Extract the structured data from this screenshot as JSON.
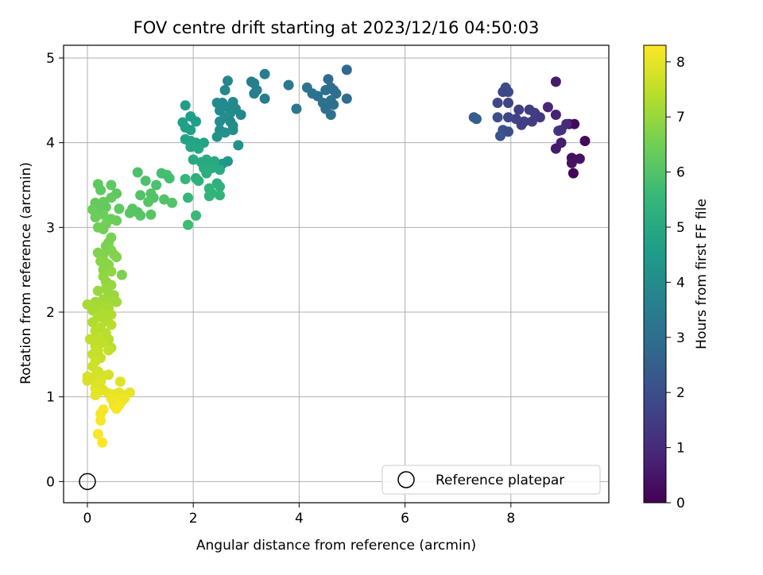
{
  "chart_data": {
    "type": "scatter",
    "title": "FOV centre drift starting at 2023/12/16 04:50:03",
    "xlabel": "Angular distance from reference (arcmin)",
    "ylabel": "Rotation from reference (arcmin)",
    "xlim": [
      -0.45,
      9.85
    ],
    "ylim": [
      -0.25,
      5.15
    ],
    "x_ticks": [
      0,
      2,
      4,
      6,
      8
    ],
    "y_ticks": [
      0,
      1,
      2,
      3,
      4,
      5
    ],
    "grid": true,
    "legend": {
      "location": "lower right",
      "entries": [
        "Reference platepar"
      ]
    },
    "reference_point": {
      "x": 0,
      "y": 0,
      "label": "Reference platepar"
    },
    "colorbar": {
      "label": "Hours from first FF file",
      "colormap": "viridis",
      "range": [
        0,
        8.3
      ],
      "ticks": [
        0,
        1,
        2,
        3,
        4,
        5,
        6,
        7,
        8
      ]
    },
    "colormap_stops": [
      "#440154",
      "#482878",
      "#3e4989",
      "#31688e",
      "#26828e",
      "#1f9e89",
      "#35b779",
      "#6ece58",
      "#b5de2b",
      "#fde725"
    ],
    "points": [
      {
        "x": 8.85,
        "y": 4.72,
        "h": 0.6
      },
      {
        "x": 9.1,
        "y": 4.22,
        "h": 0.3
      },
      {
        "x": 9.2,
        "y": 4.22,
        "h": 0.2
      },
      {
        "x": 9.4,
        "y": 4.02,
        "h": 0.2
      },
      {
        "x": 8.95,
        "y": 4.0,
        "h": 0.7
      },
      {
        "x": 8.85,
        "y": 3.93,
        "h": 0.6
      },
      {
        "x": 9.15,
        "y": 3.82,
        "h": 0.3
      },
      {
        "x": 9.3,
        "y": 3.81,
        "h": 0.4
      },
      {
        "x": 9.15,
        "y": 3.76,
        "h": 0.4
      },
      {
        "x": 9.18,
        "y": 3.64,
        "h": 0.1
      },
      {
        "x": 8.9,
        "y": 4.14,
        "h": 1.3
      },
      {
        "x": 8.95,
        "y": 4.15,
        "h": 1.2
      },
      {
        "x": 9.05,
        "y": 4.22,
        "h": 1.0
      },
      {
        "x": 8.7,
        "y": 4.42,
        "h": 0.9
      },
      {
        "x": 8.85,
        "y": 4.33,
        "h": 0.8
      },
      {
        "x": 7.9,
        "y": 4.65,
        "h": 2.0
      },
      {
        "x": 7.95,
        "y": 4.6,
        "h": 1.9
      },
      {
        "x": 7.85,
        "y": 4.6,
        "h": 1.8
      },
      {
        "x": 7.75,
        "y": 4.47,
        "h": 1.8
      },
      {
        "x": 7.95,
        "y": 4.47,
        "h": 1.7
      },
      {
        "x": 8.15,
        "y": 4.39,
        "h": 1.6
      },
      {
        "x": 8.35,
        "y": 4.39,
        "h": 1.5
      },
      {
        "x": 8.45,
        "y": 4.35,
        "h": 1.5
      },
      {
        "x": 8.55,
        "y": 4.3,
        "h": 1.4
      },
      {
        "x": 7.75,
        "y": 4.3,
        "h": 2.0
      },
      {
        "x": 7.95,
        "y": 4.3,
        "h": 1.8
      },
      {
        "x": 8.1,
        "y": 4.28,
        "h": 1.7
      },
      {
        "x": 8.25,
        "y": 4.25,
        "h": 1.7
      },
      {
        "x": 8.2,
        "y": 4.21,
        "h": 1.6
      },
      {
        "x": 8.4,
        "y": 4.25,
        "h": 1.5
      },
      {
        "x": 7.85,
        "y": 4.15,
        "h": 2.1
      },
      {
        "x": 7.95,
        "y": 4.13,
        "h": 2.0
      },
      {
        "x": 7.8,
        "y": 4.08,
        "h": 2.2
      },
      {
        "x": 7.3,
        "y": 4.3,
        "h": 2.4
      },
      {
        "x": 7.35,
        "y": 4.28,
        "h": 2.5
      },
      {
        "x": 4.9,
        "y": 4.86,
        "h": 2.8
      },
      {
        "x": 4.55,
        "y": 4.75,
        "h": 2.9
      },
      {
        "x": 4.6,
        "y": 4.65,
        "h": 2.9
      },
      {
        "x": 4.65,
        "y": 4.62,
        "h": 3.0
      },
      {
        "x": 4.5,
        "y": 4.62,
        "h": 3.0
      },
      {
        "x": 4.7,
        "y": 4.58,
        "h": 3.0
      },
      {
        "x": 4.6,
        "y": 4.5,
        "h": 3.1
      },
      {
        "x": 4.35,
        "y": 4.55,
        "h": 3.1
      },
      {
        "x": 4.25,
        "y": 4.58,
        "h": 3.2
      },
      {
        "x": 4.15,
        "y": 4.65,
        "h": 3.2
      },
      {
        "x": 4.45,
        "y": 4.47,
        "h": 3.1
      },
      {
        "x": 4.65,
        "y": 4.45,
        "h": 3.0
      },
      {
        "x": 4.9,
        "y": 4.52,
        "h": 2.9
      },
      {
        "x": 4.5,
        "y": 4.4,
        "h": 3.0
      },
      {
        "x": 4.6,
        "y": 4.33,
        "h": 3.1
      },
      {
        "x": 3.95,
        "y": 4.4,
        "h": 3.3
      },
      {
        "x": 3.8,
        "y": 4.68,
        "h": 3.4
      },
      {
        "x": 3.35,
        "y": 4.81,
        "h": 3.5
      },
      {
        "x": 3.1,
        "y": 4.72,
        "h": 3.6
      },
      {
        "x": 3.15,
        "y": 4.7,
        "h": 3.6
      },
      {
        "x": 3.2,
        "y": 4.62,
        "h": 3.6
      },
      {
        "x": 3.15,
        "y": 4.58,
        "h": 3.6
      },
      {
        "x": 3.35,
        "y": 4.52,
        "h": 3.5
      },
      {
        "x": 2.65,
        "y": 4.73,
        "h": 3.8
      },
      {
        "x": 2.6,
        "y": 4.62,
        "h": 3.9
      },
      {
        "x": 2.55,
        "y": 4.47,
        "h": 3.9
      },
      {
        "x": 2.45,
        "y": 4.47,
        "h": 4.0
      },
      {
        "x": 2.75,
        "y": 4.48,
        "h": 3.9
      },
      {
        "x": 2.65,
        "y": 4.42,
        "h": 4.0
      },
      {
        "x": 2.8,
        "y": 4.4,
        "h": 3.9
      },
      {
        "x": 2.5,
        "y": 4.38,
        "h": 4.0
      },
      {
        "x": 2.7,
        "y": 4.35,
        "h": 4.0
      },
      {
        "x": 2.9,
        "y": 4.33,
        "h": 3.9
      },
      {
        "x": 2.6,
        "y": 4.3,
        "h": 4.1
      },
      {
        "x": 2.5,
        "y": 4.25,
        "h": 4.1
      },
      {
        "x": 2.7,
        "y": 4.25,
        "h": 4.0
      },
      {
        "x": 2.75,
        "y": 4.2,
        "h": 4.0
      },
      {
        "x": 2.5,
        "y": 4.15,
        "h": 4.1
      },
      {
        "x": 2.6,
        "y": 4.12,
        "h": 4.2
      },
      {
        "x": 2.75,
        "y": 4.15,
        "h": 4.1
      },
      {
        "x": 2.45,
        "y": 4.07,
        "h": 4.2
      },
      {
        "x": 2.85,
        "y": 3.97,
        "h": 4.2
      },
      {
        "x": 2.55,
        "y": 3.75,
        "h": 4.4
      },
      {
        "x": 2.65,
        "y": 3.78,
        "h": 4.4
      },
      {
        "x": 1.85,
        "y": 4.44,
        "h": 4.6
      },
      {
        "x": 1.95,
        "y": 4.31,
        "h": 4.6
      },
      {
        "x": 2.05,
        "y": 4.25,
        "h": 4.6
      },
      {
        "x": 1.8,
        "y": 4.24,
        "h": 4.7
      },
      {
        "x": 1.85,
        "y": 4.18,
        "h": 4.7
      },
      {
        "x": 1.95,
        "y": 4.15,
        "h": 4.7
      },
      {
        "x": 1.85,
        "y": 4.04,
        "h": 4.8
      },
      {
        "x": 1.95,
        "y": 4.02,
        "h": 4.8
      },
      {
        "x": 2.05,
        "y": 4.0,
        "h": 4.8
      },
      {
        "x": 2.2,
        "y": 4.0,
        "h": 4.8
      },
      {
        "x": 1.95,
        "y": 3.95,
        "h": 4.9
      },
      {
        "x": 2.1,
        "y": 3.93,
        "h": 4.9
      },
      {
        "x": 2.0,
        "y": 3.8,
        "h": 5.0
      },
      {
        "x": 2.15,
        "y": 3.77,
        "h": 5.0
      },
      {
        "x": 2.25,
        "y": 3.8,
        "h": 5.0
      },
      {
        "x": 2.4,
        "y": 3.78,
        "h": 5.0
      },
      {
        "x": 2.2,
        "y": 3.7,
        "h": 5.1
      },
      {
        "x": 2.35,
        "y": 3.7,
        "h": 5.1
      },
      {
        "x": 2.5,
        "y": 3.68,
        "h": 5.1
      },
      {
        "x": 2.25,
        "y": 3.64,
        "h": 5.2
      },
      {
        "x": 2.05,
        "y": 3.58,
        "h": 5.2
      },
      {
        "x": 2.1,
        "y": 3.55,
        "h": 5.3
      },
      {
        "x": 2.45,
        "y": 3.52,
        "h": 5.3
      },
      {
        "x": 2.5,
        "y": 3.48,
        "h": 5.3
      },
      {
        "x": 2.3,
        "y": 3.46,
        "h": 5.4
      },
      {
        "x": 2.35,
        "y": 3.4,
        "h": 5.4
      },
      {
        "x": 2.5,
        "y": 3.38,
        "h": 5.4
      },
      {
        "x": 2.3,
        "y": 3.37,
        "h": 5.4
      },
      {
        "x": 1.85,
        "y": 3.57,
        "h": 5.5
      },
      {
        "x": 1.9,
        "y": 3.35,
        "h": 5.5
      },
      {
        "x": 2.05,
        "y": 3.14,
        "h": 5.6
      },
      {
        "x": 1.9,
        "y": 3.03,
        "h": 5.7
      },
      {
        "x": 1.4,
        "y": 3.64,
        "h": 5.8
      },
      {
        "x": 1.5,
        "y": 3.62,
        "h": 5.8
      },
      {
        "x": 1.55,
        "y": 3.58,
        "h": 5.8
      },
      {
        "x": 1.3,
        "y": 3.5,
        "h": 5.9
      },
      {
        "x": 0.95,
        "y": 3.65,
        "h": 5.9
      },
      {
        "x": 1.1,
        "y": 3.55,
        "h": 5.9
      },
      {
        "x": 1.2,
        "y": 3.4,
        "h": 6.0
      },
      {
        "x": 1.0,
        "y": 3.38,
        "h": 6.0
      },
      {
        "x": 1.25,
        "y": 3.35,
        "h": 6.0
      },
      {
        "x": 1.45,
        "y": 3.33,
        "h": 6.0
      },
      {
        "x": 1.6,
        "y": 3.29,
        "h": 6.0
      },
      {
        "x": 1.15,
        "y": 3.3,
        "h": 6.1
      },
      {
        "x": 0.85,
        "y": 3.22,
        "h": 6.1
      },
      {
        "x": 0.95,
        "y": 3.18,
        "h": 6.1
      },
      {
        "x": 0.8,
        "y": 3.17,
        "h": 6.1
      },
      {
        "x": 1.2,
        "y": 3.15,
        "h": 6.1
      },
      {
        "x": 1.0,
        "y": 3.14,
        "h": 6.1
      },
      {
        "x": 0.2,
        "y": 3.51,
        "h": 6.2
      },
      {
        "x": 0.45,
        "y": 3.5,
        "h": 6.2
      },
      {
        "x": 0.25,
        "y": 3.44,
        "h": 6.2
      },
      {
        "x": 0.55,
        "y": 3.4,
        "h": 6.2
      },
      {
        "x": 0.45,
        "y": 3.35,
        "h": 6.3
      },
      {
        "x": 0.3,
        "y": 3.3,
        "h": 6.3
      },
      {
        "x": 0.15,
        "y": 3.29,
        "h": 6.3
      },
      {
        "x": 0.2,
        "y": 3.22,
        "h": 6.3
      },
      {
        "x": 0.1,
        "y": 3.21,
        "h": 6.4
      },
      {
        "x": 0.35,
        "y": 3.24,
        "h": 6.3
      },
      {
        "x": 0.6,
        "y": 3.22,
        "h": 6.2
      },
      {
        "x": 0.3,
        "y": 3.15,
        "h": 6.4
      },
      {
        "x": 0.15,
        "y": 3.12,
        "h": 6.4
      },
      {
        "x": 0.45,
        "y": 3.1,
        "h": 6.4
      },
      {
        "x": 0.55,
        "y": 3.08,
        "h": 6.4
      },
      {
        "x": 0.35,
        "y": 3.04,
        "h": 6.5
      },
      {
        "x": 0.2,
        "y": 3.0,
        "h": 6.5
      },
      {
        "x": 0.3,
        "y": 2.98,
        "h": 6.5
      },
      {
        "x": 0.45,
        "y": 2.88,
        "h": 6.6
      },
      {
        "x": 0.4,
        "y": 2.82,
        "h": 6.6
      },
      {
        "x": 0.35,
        "y": 2.78,
        "h": 6.6
      },
      {
        "x": 0.45,
        "y": 2.73,
        "h": 6.7
      },
      {
        "x": 0.2,
        "y": 2.7,
        "h": 6.7
      },
      {
        "x": 0.3,
        "y": 2.68,
        "h": 6.7
      },
      {
        "x": 0.5,
        "y": 2.68,
        "h": 6.7
      },
      {
        "x": 0.55,
        "y": 2.65,
        "h": 6.7
      },
      {
        "x": 0.25,
        "y": 2.6,
        "h": 6.8
      },
      {
        "x": 0.35,
        "y": 2.58,
        "h": 6.8
      },
      {
        "x": 0.4,
        "y": 2.56,
        "h": 6.8
      },
      {
        "x": 0.3,
        "y": 2.5,
        "h": 6.8
      },
      {
        "x": 0.45,
        "y": 2.48,
        "h": 6.9
      },
      {
        "x": 0.3,
        "y": 2.42,
        "h": 6.9
      },
      {
        "x": 0.65,
        "y": 2.44,
        "h": 6.6
      },
      {
        "x": 0.35,
        "y": 2.36,
        "h": 6.9
      },
      {
        "x": 0.45,
        "y": 2.32,
        "h": 7.0
      },
      {
        "x": 0.35,
        "y": 2.28,
        "h": 7.0
      },
      {
        "x": 0.2,
        "y": 2.25,
        "h": 7.0
      },
      {
        "x": 0.4,
        "y": 2.22,
        "h": 7.0
      },
      {
        "x": 0.5,
        "y": 2.2,
        "h": 7.0
      },
      {
        "x": 0.3,
        "y": 2.15,
        "h": 7.1
      },
      {
        "x": 0.45,
        "y": 2.13,
        "h": 7.1
      },
      {
        "x": 0.55,
        "y": 2.12,
        "h": 7.1
      },
      {
        "x": 0.15,
        "y": 2.12,
        "h": 7.1
      },
      {
        "x": 0.0,
        "y": 2.09,
        "h": 7.2
      },
      {
        "x": 0.25,
        "y": 2.06,
        "h": 7.2
      },
      {
        "x": 0.4,
        "y": 2.05,
        "h": 7.2
      },
      {
        "x": 0.1,
        "y": 2.02,
        "h": 7.2
      },
      {
        "x": 0.3,
        "y": 1.98,
        "h": 7.3
      },
      {
        "x": 0.45,
        "y": 1.97,
        "h": 7.3
      },
      {
        "x": 0.2,
        "y": 1.94,
        "h": 7.3
      },
      {
        "x": 0.35,
        "y": 1.9,
        "h": 7.3
      },
      {
        "x": 0.1,
        "y": 1.88,
        "h": 7.3
      },
      {
        "x": 0.45,
        "y": 1.85,
        "h": 7.4
      },
      {
        "x": 0.25,
        "y": 1.82,
        "h": 7.4
      },
      {
        "x": 0.15,
        "y": 1.78,
        "h": 7.4
      },
      {
        "x": 0.35,
        "y": 1.75,
        "h": 7.4
      },
      {
        "x": 0.2,
        "y": 1.7,
        "h": 7.5
      },
      {
        "x": 0.05,
        "y": 1.68,
        "h": 7.5
      },
      {
        "x": 0.4,
        "y": 1.68,
        "h": 7.4
      },
      {
        "x": 0.3,
        "y": 1.64,
        "h": 7.5
      },
      {
        "x": 0.15,
        "y": 1.6,
        "h": 7.5
      },
      {
        "x": 0.45,
        "y": 1.58,
        "h": 7.4
      },
      {
        "x": 0.4,
        "y": 1.55,
        "h": 7.6
      },
      {
        "x": 0.2,
        "y": 1.55,
        "h": 7.6
      },
      {
        "x": 0.1,
        "y": 1.5,
        "h": 7.6
      },
      {
        "x": 0.25,
        "y": 1.46,
        "h": 7.6
      },
      {
        "x": 0.15,
        "y": 1.42,
        "h": 7.7
      },
      {
        "x": 0.1,
        "y": 1.36,
        "h": 7.7
      },
      {
        "x": 0.2,
        "y": 1.3,
        "h": 7.7
      },
      {
        "x": 0.15,
        "y": 1.25,
        "h": 7.8
      },
      {
        "x": 0.0,
        "y": 1.24,
        "h": 7.8
      },
      {
        "x": 0.3,
        "y": 1.25,
        "h": 7.8
      },
      {
        "x": 0.4,
        "y": 1.26,
        "h": 7.8
      },
      {
        "x": 0.1,
        "y": 1.2,
        "h": 7.8
      },
      {
        "x": 0.0,
        "y": 1.19,
        "h": 7.8
      },
      {
        "x": 0.25,
        "y": 1.18,
        "h": 7.9
      },
      {
        "x": 0.2,
        "y": 1.14,
        "h": 7.9
      },
      {
        "x": 0.15,
        "y": 1.1,
        "h": 7.9
      },
      {
        "x": 0.3,
        "y": 1.08,
        "h": 7.9
      },
      {
        "x": 0.2,
        "y": 1.05,
        "h": 8.0
      },
      {
        "x": 0.15,
        "y": 1.02,
        "h": 8.0
      },
      {
        "x": 0.4,
        "y": 1.04,
        "h": 8.0
      },
      {
        "x": 0.5,
        "y": 1.03,
        "h": 8.0
      },
      {
        "x": 0.6,
        "y": 1.05,
        "h": 8.0
      },
      {
        "x": 0.7,
        "y": 1.02,
        "h": 8.0
      },
      {
        "x": 0.8,
        "y": 1.05,
        "h": 8.0
      },
      {
        "x": 0.62,
        "y": 1.18,
        "h": 7.9
      },
      {
        "x": 0.45,
        "y": 0.98,
        "h": 8.1
      },
      {
        "x": 0.55,
        "y": 0.96,
        "h": 8.1
      },
      {
        "x": 0.65,
        "y": 0.95,
        "h": 8.1
      },
      {
        "x": 0.7,
        "y": 0.98,
        "h": 8.1
      },
      {
        "x": 0.5,
        "y": 0.9,
        "h": 8.1
      },
      {
        "x": 0.6,
        "y": 0.9,
        "h": 8.2
      },
      {
        "x": 0.55,
        "y": 0.86,
        "h": 8.2
      },
      {
        "x": 0.3,
        "y": 0.85,
        "h": 8.2
      },
      {
        "x": 0.25,
        "y": 0.8,
        "h": 8.2
      },
      {
        "x": 0.25,
        "y": 0.72,
        "h": 8.2
      },
      {
        "x": 0.2,
        "y": 0.56,
        "h": 8.3
      },
      {
        "x": 0.28,
        "y": 0.46,
        "h": 8.3
      }
    ]
  }
}
